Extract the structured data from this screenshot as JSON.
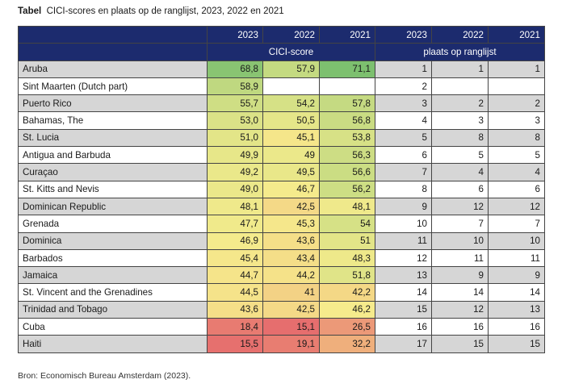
{
  "title": {
    "label": "Tabel",
    "text": "CICI-scores en plaats op de ranglijst, 2023, 2022 en 2021"
  },
  "header": {
    "years": [
      "2023",
      "2022",
      "2021",
      "2023",
      "2022",
      "2021"
    ],
    "group_score": "CICI-score",
    "group_rank": "plaats op ranglijst"
  },
  "rows": [
    {
      "country": "Aruba",
      "s2023": "68,8",
      "s2022": "57,9",
      "s2021": "71,1",
      "r2023": "1",
      "r2022": "1",
      "r2021": "1"
    },
    {
      "country": "Sint Maarten (Dutch part)",
      "s2023": "58,9",
      "s2022": "",
      "s2021": "",
      "r2023": "2",
      "r2022": "",
      "r2021": ""
    },
    {
      "country": "Puerto Rico",
      "s2023": "55,7",
      "s2022": "54,2",
      "s2021": "57,8",
      "r2023": "3",
      "r2022": "2",
      "r2021": "2"
    },
    {
      "country": "Bahamas, The",
      "s2023": "53,0",
      "s2022": "50,5",
      "s2021": "56,8",
      "r2023": "4",
      "r2022": "3",
      "r2021": "3"
    },
    {
      "country": "St. Lucia",
      "s2023": "51,0",
      "s2022": "45,1",
      "s2021": "53,8",
      "r2023": "5",
      "r2022": "8",
      "r2021": "8"
    },
    {
      "country": "Antigua and Barbuda",
      "s2023": "49,9",
      "s2022": "49",
      "s2021": "56,3",
      "r2023": "6",
      "r2022": "5",
      "r2021": "5"
    },
    {
      "country": "Curaçao",
      "s2023": "49,2",
      "s2022": "49,5",
      "s2021": "56,6",
      "r2023": "7",
      "r2022": "4",
      "r2021": "4"
    },
    {
      "country": "St. Kitts and Nevis",
      "s2023": "49,0",
      "s2022": "46,7",
      "s2021": "56,2",
      "r2023": "8",
      "r2022": "6",
      "r2021": "6"
    },
    {
      "country": "Dominican Republic",
      "s2023": "48,1",
      "s2022": "42,5",
      "s2021": "48,1",
      "r2023": "9",
      "r2022": "12",
      "r2021": "12"
    },
    {
      "country": "Grenada",
      "s2023": "47,7",
      "s2022": "45,3",
      "s2021": "54",
      "r2023": "10",
      "r2022": "7",
      "r2021": "7"
    },
    {
      "country": "Dominica",
      "s2023": "46,9",
      "s2022": "43,6",
      "s2021": "51",
      "r2023": "11",
      "r2022": "10",
      "r2021": "10"
    },
    {
      "country": "Barbados",
      "s2023": "45,4",
      "s2022": "43,4",
      "s2021": "48,3",
      "r2023": "12",
      "r2022": "11",
      "r2021": "11"
    },
    {
      "country": "Jamaica",
      "s2023": "44,7",
      "s2022": "44,2",
      "s2021": "51,8",
      "r2023": "13",
      "r2022": "9",
      "r2021": "9"
    },
    {
      "country": "St. Vincent and the Grenadines",
      "s2023": "44,5",
      "s2022": "41",
      "s2021": "42,2",
      "r2023": "14",
      "r2022": "14",
      "r2021": "14"
    },
    {
      "country": "Trinidad and Tobago",
      "s2023": "43,6",
      "s2022": "42,5",
      "s2021": "46,2",
      "r2023": "15",
      "r2022": "12",
      "r2021": "13"
    },
    {
      "country": "Cuba",
      "s2023": "18,4",
      "s2022": "15,1",
      "s2021": "26,5",
      "r2023": "16",
      "r2022": "16",
      "r2021": "16"
    },
    {
      "country": "Haiti",
      "s2023": "15,5",
      "s2022": "19,1",
      "s2021": "32,2",
      "r2023": "17",
      "r2022": "15",
      "r2021": "15"
    }
  ],
  "source": "Bron: Economisch Bureau Amsterdam (2023)."
}
